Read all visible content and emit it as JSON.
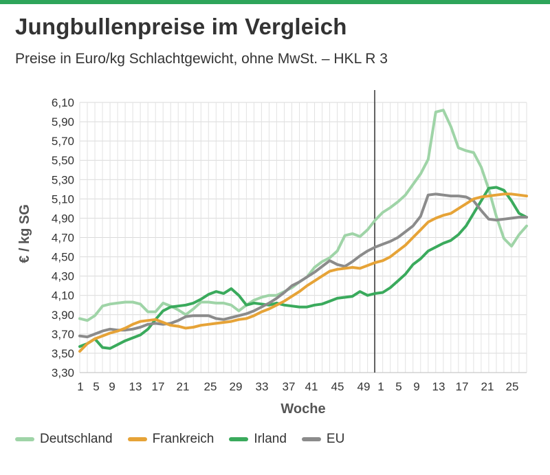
{
  "header": {
    "title": "Jungbullenpreise im Vergleich",
    "subtitle": "Preise in Euro/kg Schlachtgewicht, ohne MwSt. – HKL R 3",
    "accent_color": "#2ea55a"
  },
  "chart_data": {
    "type": "line",
    "title": "Jungbullenpreise im Vergleich",
    "subtitle": "Preise in Euro/kg Schlachtgewicht, ohne MwSt. – HKL R 3",
    "xlabel": "Woche",
    "ylabel": "€ / kg SG",
    "ylim": [
      3.3,
      6.1
    ],
    "yticks": [
      "6,10",
      "5,90",
      "5,70",
      "5,50",
      "5,30",
      "5,10",
      "4,90",
      "4,70",
      "4,50",
      "4,30",
      "4,10",
      "3,90",
      "3,70",
      "3,50",
      "3,30"
    ],
    "xtick_labels": [
      "1",
      "5",
      "9",
      "13",
      "17",
      "21",
      "25",
      "29",
      "33",
      "37",
      "41",
      "45",
      "49",
      "1",
      "5",
      "9",
      "13",
      "17",
      "21",
      "25"
    ],
    "grid": true,
    "legend_position": "bottom",
    "divider_after_week": "49 (year change)",
    "series": [
      {
        "name": "Deutschland",
        "color": "#9fd4a7",
        "values": [
          3.86,
          3.84,
          3.89,
          3.99,
          4.01,
          4.02,
          4.03,
          4.03,
          4.01,
          3.93,
          3.93,
          4.02,
          3.99,
          3.95,
          3.9,
          3.96,
          4.03,
          4.03,
          4.02,
          4.02,
          4.0,
          3.94,
          4.0,
          4.05,
          4.08,
          4.1,
          4.1,
          4.14,
          4.18,
          4.24,
          4.29,
          4.39,
          4.45,
          4.49,
          4.56,
          4.72,
          4.74,
          4.71,
          4.78,
          4.88,
          4.96,
          5.01,
          5.07,
          5.14,
          5.25,
          5.36,
          5.51,
          6.0,
          6.02,
          5.85,
          5.63,
          5.6,
          5.58,
          5.43,
          5.2,
          4.92,
          4.69,
          4.61,
          4.73,
          4.82
        ]
      },
      {
        "name": "Frankreich",
        "color": "#e6a337",
        "values": [
          3.52,
          3.6,
          3.65,
          3.68,
          3.71,
          3.73,
          3.76,
          3.8,
          3.83,
          3.84,
          3.85,
          3.82,
          3.79,
          3.78,
          3.76,
          3.77,
          3.79,
          3.8,
          3.81,
          3.82,
          3.83,
          3.85,
          3.86,
          3.89,
          3.93,
          3.96,
          4.0,
          4.04,
          4.09,
          4.14,
          4.2,
          4.25,
          4.3,
          4.35,
          4.37,
          4.38,
          4.39,
          4.38,
          4.41,
          4.44,
          4.46,
          4.5,
          4.56,
          4.62,
          4.7,
          4.78,
          4.86,
          4.9,
          4.93,
          4.95,
          5.0,
          5.05,
          5.1,
          5.12,
          5.13,
          5.14,
          5.15,
          5.15,
          5.14,
          5.13
        ]
      },
      {
        "name": "Irland",
        "color": "#3aaa5c",
        "values": [
          3.57,
          3.6,
          3.65,
          3.56,
          3.55,
          3.59,
          3.63,
          3.66,
          3.69,
          3.75,
          3.85,
          3.94,
          3.98,
          3.99,
          4.0,
          4.02,
          4.06,
          4.11,
          4.14,
          4.12,
          4.17,
          4.1,
          4.0,
          4.02,
          4.01,
          4.0,
          4.02,
          4.0,
          3.99,
          3.98,
          3.98,
          4.0,
          4.01,
          4.04,
          4.07,
          4.08,
          4.09,
          4.14,
          4.1,
          4.12,
          4.13,
          4.18,
          4.25,
          4.32,
          4.42,
          4.48,
          4.56,
          4.6,
          4.64,
          4.67,
          4.73,
          4.82,
          4.95,
          5.08,
          5.21,
          5.22,
          5.19,
          5.08,
          4.95,
          4.91
        ]
      },
      {
        "name": "EU",
        "color": "#8b8b8b",
        "values": [
          3.68,
          3.67,
          3.7,
          3.73,
          3.75,
          3.74,
          3.74,
          3.75,
          3.77,
          3.8,
          3.81,
          3.8,
          3.81,
          3.84,
          3.88,
          3.89,
          3.89,
          3.89,
          3.86,
          3.85,
          3.87,
          3.89,
          3.91,
          3.94,
          3.98,
          4.02,
          4.07,
          4.13,
          4.2,
          4.24,
          4.29,
          4.34,
          4.4,
          4.46,
          4.42,
          4.4,
          4.45,
          4.51,
          4.56,
          4.6,
          4.63,
          4.66,
          4.7,
          4.76,
          4.82,
          4.92,
          5.14,
          5.15,
          5.14,
          5.13,
          5.13,
          5.12,
          5.08,
          4.98,
          4.89,
          4.88,
          4.89,
          4.9,
          4.91,
          4.91
        ]
      }
    ]
  }
}
